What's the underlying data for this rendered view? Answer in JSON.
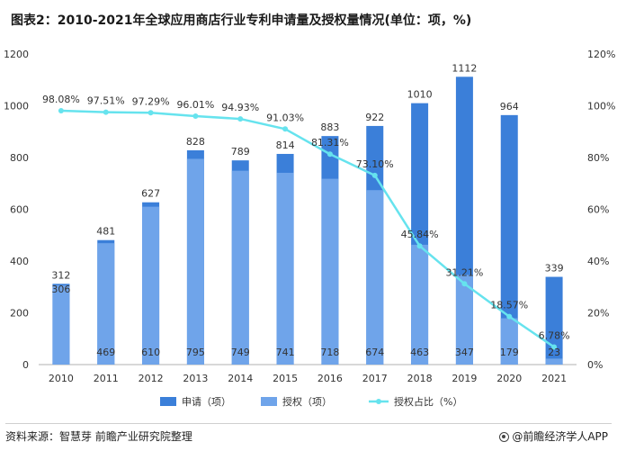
{
  "title": "图表2：2010-2021年全球应用商店行业专利申请量及授权量情况(单位：项，%)",
  "footer": {
    "source": "资料来源：智慧芽 前瞻产业研究院整理",
    "brand": "@前瞻经济学人APP"
  },
  "colors": {
    "applications": "#3b7fd9",
    "grants": "#6fa4ea",
    "ratio_line": "#66e3ee",
    "axis": "#b0b0b0",
    "text": "#333333"
  },
  "chart_data": {
    "type": "bar",
    "categories": [
      "2010",
      "2011",
      "2012",
      "2013",
      "2014",
      "2015",
      "2016",
      "2017",
      "2018",
      "2019",
      "2020",
      "2021"
    ],
    "series": [
      {
        "name": "申请（项）",
        "kind": "bar",
        "axis": "left",
        "values": [
          312,
          481,
          627,
          828,
          789,
          814,
          883,
          922,
          1010,
          1112,
          964,
          339
        ],
        "labels": [
          "312",
          "481",
          "627",
          "828",
          "789",
          "814",
          "883",
          "922",
          "1010",
          "1112",
          "964",
          "339"
        ]
      },
      {
        "name": "授权（项）",
        "kind": "bar",
        "axis": "left",
        "values": [
          306,
          469,
          610,
          795,
          749,
          741,
          718,
          674,
          463,
          347,
          179,
          23
        ],
        "labels": [
          "306",
          "469",
          "610",
          "795",
          "749",
          "741",
          "718",
          "674",
          "463",
          "347",
          "179",
          "23"
        ]
      },
      {
        "name": "授权占比（%）",
        "kind": "line",
        "axis": "right",
        "values": [
          98.08,
          97.51,
          97.29,
          96.01,
          94.93,
          91.03,
          81.31,
          73.1,
          45.84,
          31.21,
          18.57,
          6.78
        ],
        "labels": [
          "98.08%",
          "97.51%",
          "97.29%",
          "96.01%",
          "94.93%",
          "91.03%",
          "81.31%",
          "73.10%",
          "45.84%",
          "31.21%",
          "18.57%",
          "6.78%"
        ]
      }
    ],
    "left_axis": {
      "min": 0,
      "max": 1200,
      "ticks": [
        "0",
        "200",
        "400",
        "600",
        "800",
        "1000",
        "1200"
      ]
    },
    "right_axis": {
      "min": 0,
      "max": 120,
      "ticks": [
        "0%",
        "20%",
        "40%",
        "60%",
        "80%",
        "100%",
        "120%"
      ]
    },
    "legend": [
      {
        "label": "申请（项）",
        "kind": "bar-applications"
      },
      {
        "label": "授权（项）",
        "kind": "bar-grants"
      },
      {
        "label": "授权占比（%）",
        "kind": "line"
      }
    ],
    "legend_position": "bottom"
  }
}
